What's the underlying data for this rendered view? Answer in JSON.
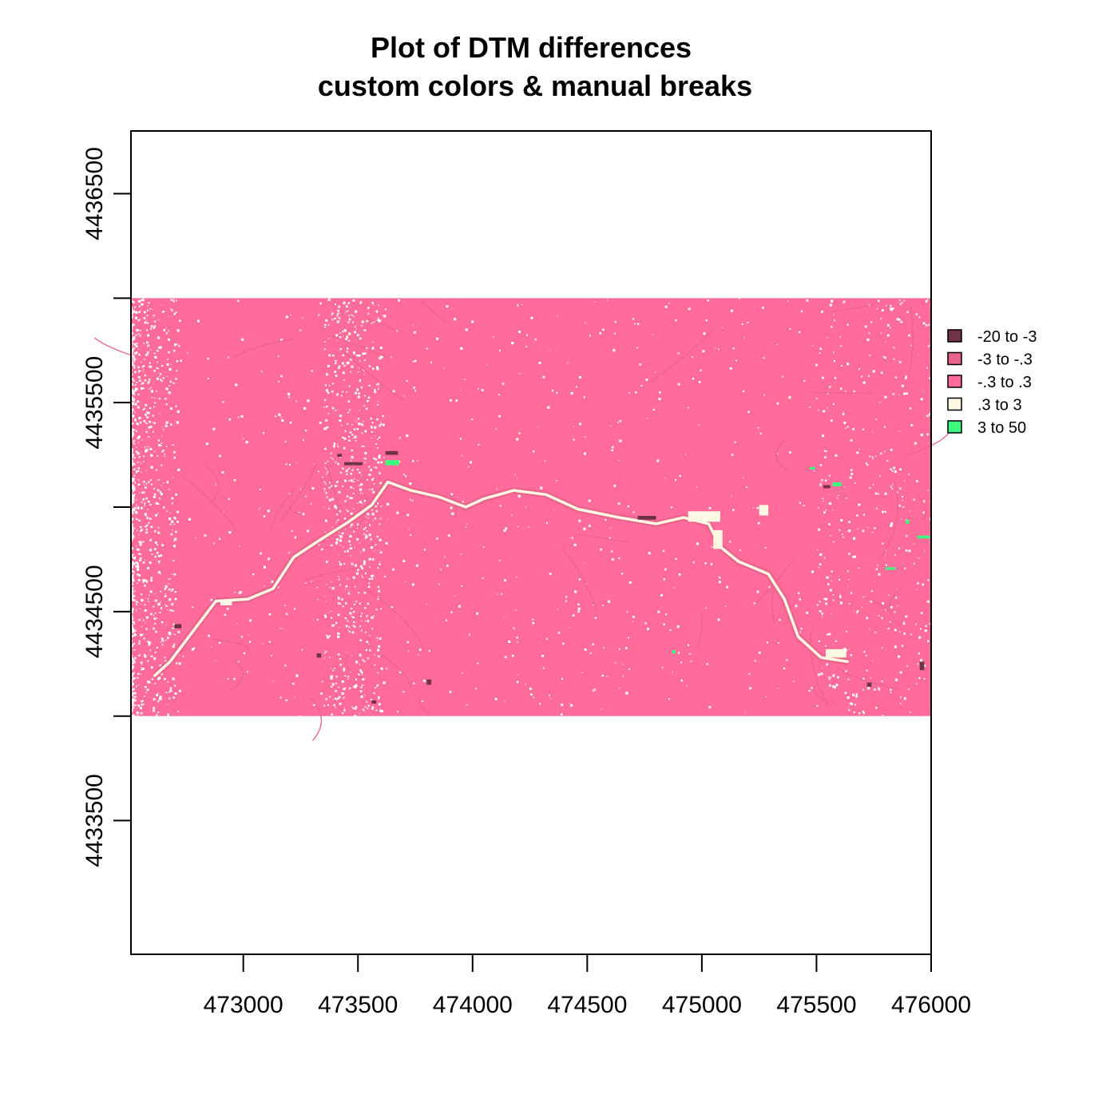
{
  "chart_data": {
    "type": "heatmap",
    "title": "Plot of DTM differences",
    "subtitle": "custom colors & manual breaks",
    "xlabel": "",
    "ylabel": "",
    "xlim": [
      472510,
      476000
    ],
    "ylim": [
      4432860,
      4436800
    ],
    "x_ticks": [
      "473000",
      "473500",
      "474000",
      "474500",
      "475000",
      "475500",
      "476000"
    ],
    "x_tick_values": [
      473000,
      473500,
      474000,
      474500,
      475000,
      475500,
      476000
    ],
    "y_ticks": [
      "4433500",
      "",
      "4434500",
      "",
      "4435500",
      "",
      "4436500"
    ],
    "y_tick_values": [
      4433500,
      4434000,
      4434500,
      4435000,
      4435500,
      4436000,
      4436500
    ],
    "raster_extent": {
      "xmin": 472510,
      "xmax": 476000,
      "ymin": 4434000,
      "ymax": 4436000
    },
    "legend_position": "right",
    "classes": [
      {
        "label": "-20 to -3",
        "color": "#6e3348"
      },
      {
        "label": "-3 to -.3",
        "color": "#e8638c"
      },
      {
        "label": "-.3 to .3",
        "color": "#ff6b9a"
      },
      {
        "label": ".3 to 3",
        "color": "#fff8e3"
      },
      {
        "label": "3 to 50",
        "color": "#3dfa7f"
      }
    ],
    "dominant_class": "-.3 to .3",
    "features": {
      "river_light": [
        [
          472610,
          4434190
        ],
        [
          472680,
          4434260
        ],
        [
          472770,
          4434390
        ],
        [
          472880,
          4434550
        ],
        [
          473020,
          4434560
        ],
        [
          473130,
          4434610
        ],
        [
          473220,
          4434760
        ],
        [
          473330,
          4434840
        ],
        [
          473460,
          4434930
        ],
        [
          473560,
          4435010
        ],
        [
          473630,
          4435120
        ],
        [
          473730,
          4435080
        ],
        [
          473850,
          4435050
        ],
        [
          473970,
          4435000
        ],
        [
          474050,
          4435040
        ],
        [
          474180,
          4435080
        ],
        [
          474320,
          4435060
        ],
        [
          474460,
          4434990
        ],
        [
          474640,
          4434950
        ],
        [
          474800,
          4434920
        ],
        [
          474920,
          4434950
        ],
        [
          475030,
          4434920
        ],
        [
          475080,
          4434810
        ],
        [
          475160,
          4434740
        ],
        [
          475290,
          4434680
        ],
        [
          475360,
          4434560
        ],
        [
          475420,
          4434380
        ],
        [
          475520,
          4434280
        ],
        [
          475640,
          4434260
        ]
      ],
      "bright_patches": [
        {
          "x": 474940,
          "y": 4434930,
          "w": 140,
          "h": 50
        },
        {
          "x": 475050,
          "y": 4434800,
          "w": 40,
          "h": 90
        },
        {
          "x": 475540,
          "y": 4434280,
          "w": 90,
          "h": 40
        },
        {
          "x": 475250,
          "y": 4434960,
          "w": 40,
          "h": 50
        },
        {
          "x": 472900,
          "y": 4434530,
          "w": 50,
          "h": 20
        }
      ],
      "green_patches": [
        {
          "x": 473620,
          "y": 4435200,
          "w": 60,
          "h": 25
        },
        {
          "x": 475570,
          "y": 4435100,
          "w": 40,
          "h": 18
        },
        {
          "x": 475470,
          "y": 4435180,
          "w": 25,
          "h": 12
        },
        {
          "x": 475940,
          "y": 4434850,
          "w": 55,
          "h": 14
        },
        {
          "x": 475800,
          "y": 4434700,
          "w": 45,
          "h": 12
        },
        {
          "x": 475890,
          "y": 4434920,
          "w": 15,
          "h": 20
        },
        {
          "x": 474870,
          "y": 4434300,
          "w": 15,
          "h": 15
        }
      ],
      "dark_patches": [
        {
          "x": 474720,
          "y": 4434940,
          "w": 80,
          "h": 18
        },
        {
          "x": 473440,
          "y": 4435200,
          "w": 80,
          "h": 15
        },
        {
          "x": 473620,
          "y": 4435250,
          "w": 55,
          "h": 18
        },
        {
          "x": 473800,
          "y": 4434150,
          "w": 20,
          "h": 25
        },
        {
          "x": 475530,
          "y": 4435090,
          "w": 30,
          "h": 15
        },
        {
          "x": 475950,
          "y": 4434220,
          "w": 20,
          "h": 40
        },
        {
          "x": 472700,
          "y": 4434420,
          "w": 30,
          "h": 20
        },
        {
          "x": 473560,
          "y": 4434060,
          "w": 20,
          "h": 15
        },
        {
          "x": 475720,
          "y": 4434140,
          "w": 20,
          "h": 20
        },
        {
          "x": 473320,
          "y": 4434280,
          "w": 20,
          "h": 20
        },
        {
          "x": 473410,
          "y": 4435240,
          "w": 20,
          "h": 15
        }
      ]
    }
  }
}
